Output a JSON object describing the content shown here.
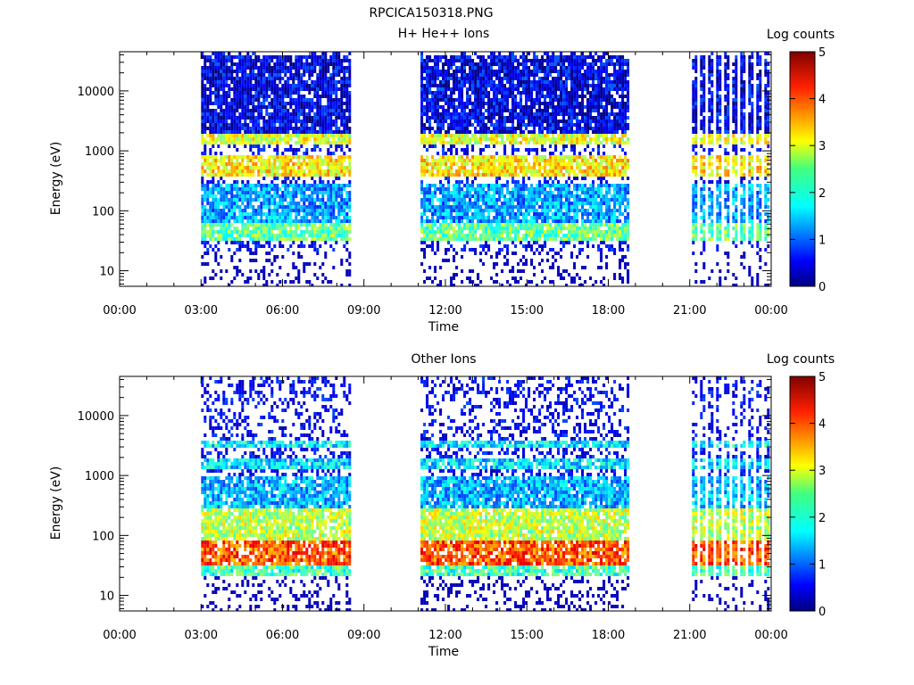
{
  "figure_title": "RPCICA150318.PNG",
  "chart_data": [
    {
      "type": "heatmap",
      "title": "H+ He++ Ions",
      "xlabel": "Time",
      "ylabel": "Energy (eV)",
      "yscale": "log",
      "ylim": [
        5.5,
        45000
      ],
      "xlim": [
        "00:00",
        "24:00"
      ],
      "x_tick_labels": [
        "00:00",
        "03:00",
        "06:00",
        "09:00",
        "12:00",
        "15:00",
        "18:00",
        "21:00",
        "00:00"
      ],
      "y_tick_labels": [
        "10",
        "100",
        "1000",
        "10000"
      ],
      "colorbar": {
        "label": "Log counts",
        "range": [
          0,
          5
        ],
        "ticks": [
          "0",
          "1",
          "2",
          "3",
          "4",
          "5"
        ],
        "colormap": "jet"
      },
      "data_intervals": [
        {
          "start": "03:00",
          "end": "08:30"
        },
        {
          "start": "11:05",
          "end": "18:45"
        },
        {
          "start": "21:05",
          "end": "23:55",
          "pattern": "intermittent"
        }
      ],
      "bands": [
        {
          "energy_min": 1200,
          "energy_max": 1800,
          "log_counts": 3.0
        },
        {
          "energy_min": 350,
          "energy_max": 900,
          "log_counts": 3.2
        },
        {
          "energy_min": 30,
          "energy_max": 60,
          "log_counts": 2.4
        },
        {
          "energy_min": 60,
          "energy_max": 300,
          "log_counts": 1.4
        },
        {
          "energy_min": 2000,
          "energy_max": 40000,
          "log_counts": 0.5
        }
      ]
    },
    {
      "type": "heatmap",
      "title": "Other Ions",
      "xlabel": "Time",
      "ylabel": "Energy (eV)",
      "yscale": "log",
      "ylim": [
        5.5,
        45000
      ],
      "xlim": [
        "00:00",
        "24:00"
      ],
      "x_tick_labels": [
        "00:00",
        "03:00",
        "06:00",
        "09:00",
        "12:00",
        "15:00",
        "18:00",
        "21:00",
        "00:00"
      ],
      "y_tick_labels": [
        "10",
        "100",
        "1000",
        "10000"
      ],
      "colorbar": {
        "label": "Log counts",
        "range": [
          0,
          5
        ],
        "ticks": [
          "0",
          "1",
          "2",
          "3",
          "4",
          "5"
        ],
        "colormap": "jet"
      },
      "data_intervals": [
        {
          "start": "03:00",
          "end": "08:30"
        },
        {
          "start": "11:05",
          "end": "18:45"
        },
        {
          "start": "21:05",
          "end": "23:55",
          "pattern": "intermittent"
        }
      ],
      "bands": [
        {
          "energy_min": 2800,
          "energy_max": 3800,
          "log_counts": 1.8
        },
        {
          "energy_min": 1300,
          "energy_max": 1900,
          "log_counts": 1.7
        },
        {
          "energy_min": 30,
          "energy_max": 80,
          "log_counts": 4.0
        },
        {
          "energy_min": 80,
          "energy_max": 300,
          "log_counts": 2.8
        },
        {
          "energy_min": 300,
          "energy_max": 1000,
          "log_counts": 1.5
        },
        {
          "energy_min": 20,
          "energy_max": 30,
          "log_counts": 2.2
        }
      ]
    }
  ]
}
